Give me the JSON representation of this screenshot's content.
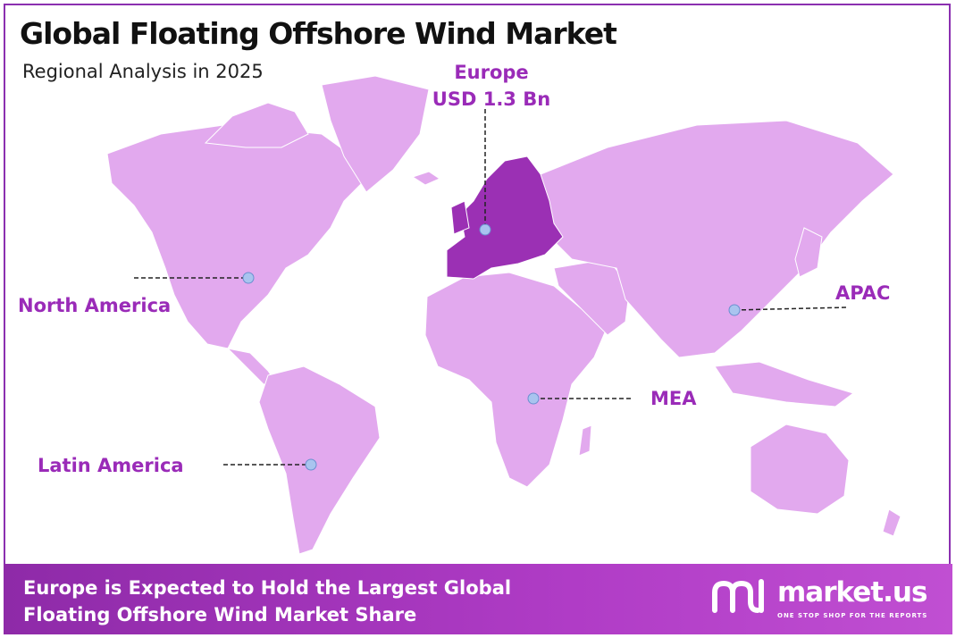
{
  "header": {
    "title": "Global Floating Offshore Wind Market",
    "subtitle": "Regional Analysis in 2025"
  },
  "regions": {
    "europe": {
      "name": "Europe",
      "value": "USD 1.3 Bn",
      "highlighted": true
    },
    "north_america": {
      "name": "North America"
    },
    "apac": {
      "name": "APAC"
    },
    "mea": {
      "name": "MEA"
    },
    "latin_america": {
      "name": "Latin America"
    }
  },
  "colors": {
    "land": "#e2a9ee",
    "highlight": "#9b30b4",
    "marker": "#a9c4ef",
    "label": "#9a2bb8",
    "footer": "#a034bb"
  },
  "footer": {
    "line1": "Europe is Expected to Hold the Largest Global",
    "line2": "Floating Offshore Wind Market Share"
  },
  "brand": {
    "logo_icon": "market-us-logo",
    "name": "market.us",
    "tagline": "ONE STOP SHOP FOR THE REPORTS"
  }
}
